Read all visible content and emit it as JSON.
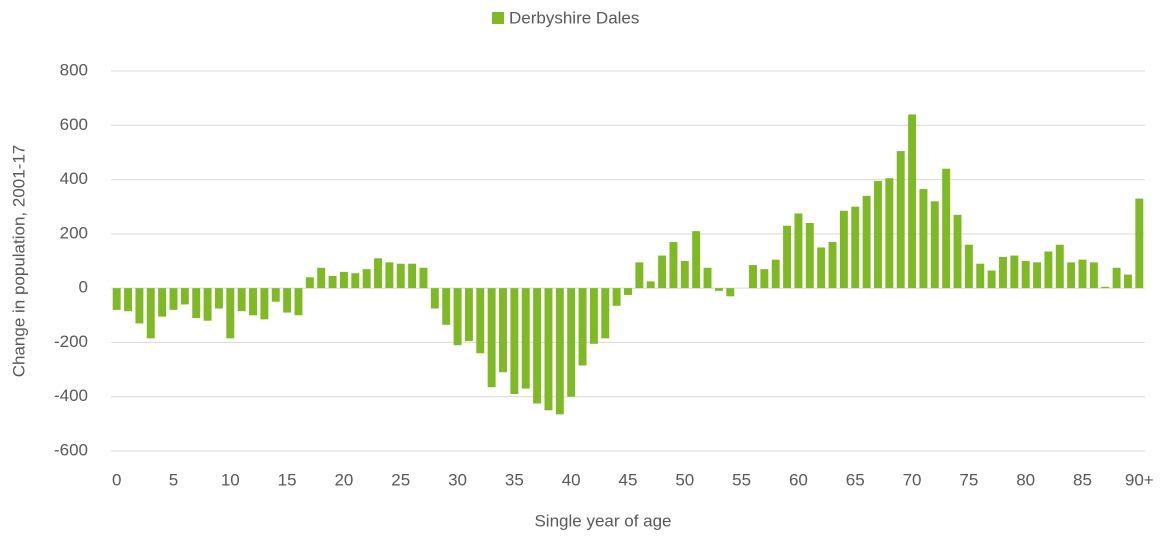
{
  "chart_data": {
    "type": "bar",
    "x_label": "Single year of age",
    "y_label": "Change in population, 2001-17",
    "categories": [
      "0",
      null,
      null,
      null,
      null,
      "5",
      null,
      null,
      null,
      null,
      "10",
      null,
      null,
      null,
      null,
      "15",
      null,
      null,
      null,
      null,
      "20",
      null,
      null,
      null,
      null,
      "25",
      null,
      null,
      null,
      null,
      "30",
      null,
      null,
      null,
      null,
      "35",
      null,
      null,
      null,
      null,
      "40",
      null,
      null,
      null,
      null,
      "45",
      null,
      null,
      null,
      null,
      "50",
      null,
      null,
      null,
      null,
      "55",
      null,
      null,
      null,
      null,
      "60",
      null,
      null,
      null,
      null,
      "65",
      null,
      null,
      null,
      null,
      "70",
      null,
      null,
      null,
      null,
      "75",
      null,
      null,
      null,
      null,
      "80",
      null,
      null,
      null,
      null,
      "85",
      null,
      null,
      null,
      null,
      "90+"
    ],
    "series": [
      {
        "name": "Derbyshire Dales",
        "color": "#7fba26",
        "values": [
          -80,
          -85,
          -130,
          -185,
          -105,
          -80,
          -60,
          -110,
          -120,
          -75,
          -185,
          -85,
          -100,
          -115,
          -50,
          -90,
          -100,
          40,
          75,
          45,
          60,
          55,
          70,
          110,
          95,
          90,
          90,
          75,
          -75,
          -135,
          -210,
          -195,
          -240,
          -365,
          -310,
          -390,
          -370,
          -425,
          -450,
          -465,
          -400,
          -285,
          -205,
          -185,
          -65,
          -25,
          95,
          25,
          120,
          170,
          100,
          210,
          75,
          -10,
          -30,
          0,
          85,
          70,
          105,
          230,
          275,
          240,
          150,
          170,
          285,
          300,
          340,
          395,
          405,
          505,
          640,
          365,
          320,
          440,
          270,
          160,
          90,
          65,
          115,
          120,
          100,
          95,
          135,
          160,
          95,
          105,
          95,
          5,
          75,
          50,
          330
        ]
      }
    ],
    "ylim": [
      -600,
      800
    ],
    "yticks": [
      -600,
      -400,
      -200,
      0,
      200,
      400,
      600,
      800
    ],
    "grid": true,
    "legend": "top"
  }
}
